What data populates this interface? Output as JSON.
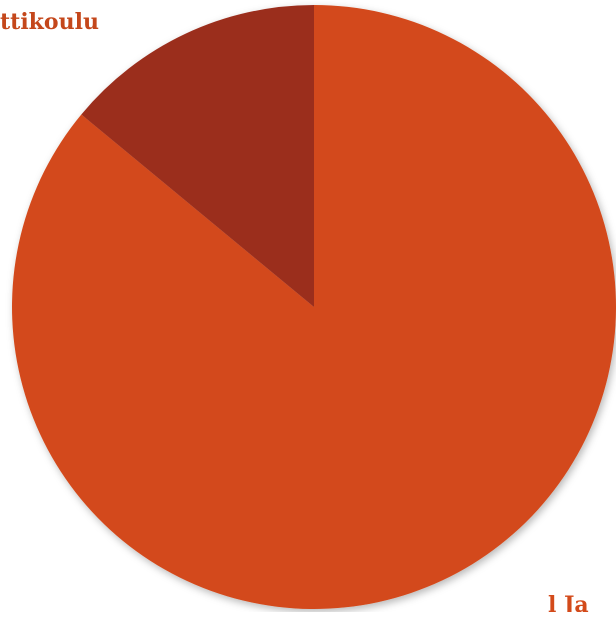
{
  "chart_data": {
    "type": "pie",
    "title": "",
    "slices": [
      {
        "label": "",
        "value": 86,
        "color": "#d34a1a",
        "label_color": "#d34a1a",
        "label_text": "l Ja"
      },
      {
        "label": "ttikoulu",
        "value": 14,
        "color": "#9b2d1f",
        "label_color": "#c4471b",
        "label_text": "ttikoulu"
      }
    ],
    "start_angle_deg": 0,
    "direction": "clockwise",
    "legend": "none"
  }
}
